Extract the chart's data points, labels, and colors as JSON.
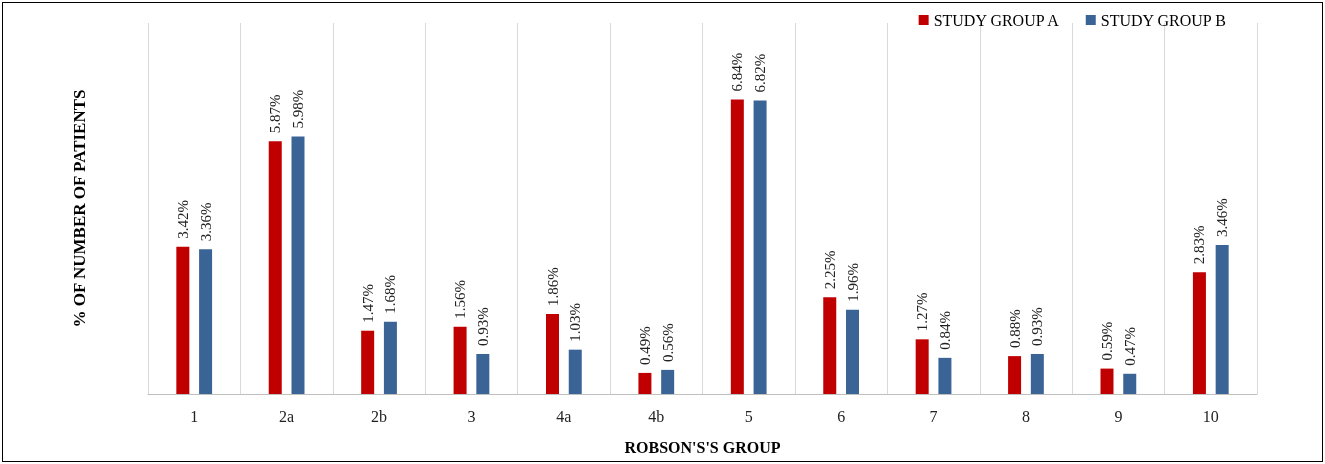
{
  "chart_data": {
    "type": "bar",
    "xlabel": "ROBSON'S'S GROUP",
    "ylabel": "% OF NUMBER OF PATIENTS",
    "categories": [
      "1",
      "2a",
      "2b",
      "3",
      "4a",
      "4b",
      "5",
      "6",
      "7",
      "8",
      "9",
      "10"
    ],
    "series": [
      {
        "name": "STUDY GROUP A",
        "color": "#c00000",
        "values": [
          3.42,
          5.87,
          1.47,
          1.56,
          1.86,
          0.49,
          6.84,
          2.25,
          1.27,
          0.88,
          0.59,
          2.83
        ],
        "value_labels": [
          "3.42%",
          "5.87%",
          "1.47%",
          "1.56%",
          "1.86%",
          "0.49%",
          "6.84%",
          "2.25%",
          "1.27%",
          "0.88%",
          "0.59%",
          "2.83%"
        ]
      },
      {
        "name": "STUDY GROUP B",
        "color": "#3a6496",
        "values": [
          3.36,
          5.98,
          1.68,
          0.93,
          1.03,
          0.56,
          6.82,
          1.96,
          0.84,
          0.93,
          0.47,
          3.46
        ],
        "value_labels": [
          "3.36%",
          "5.98%",
          "1.68%",
          "0.93%",
          "1.03%",
          "0.56%",
          "6.82%",
          "1.96%",
          "0.84%",
          "0.93%",
          "0.47%",
          "3.46%"
        ]
      }
    ],
    "grid": "x",
    "legend": "top right"
  }
}
